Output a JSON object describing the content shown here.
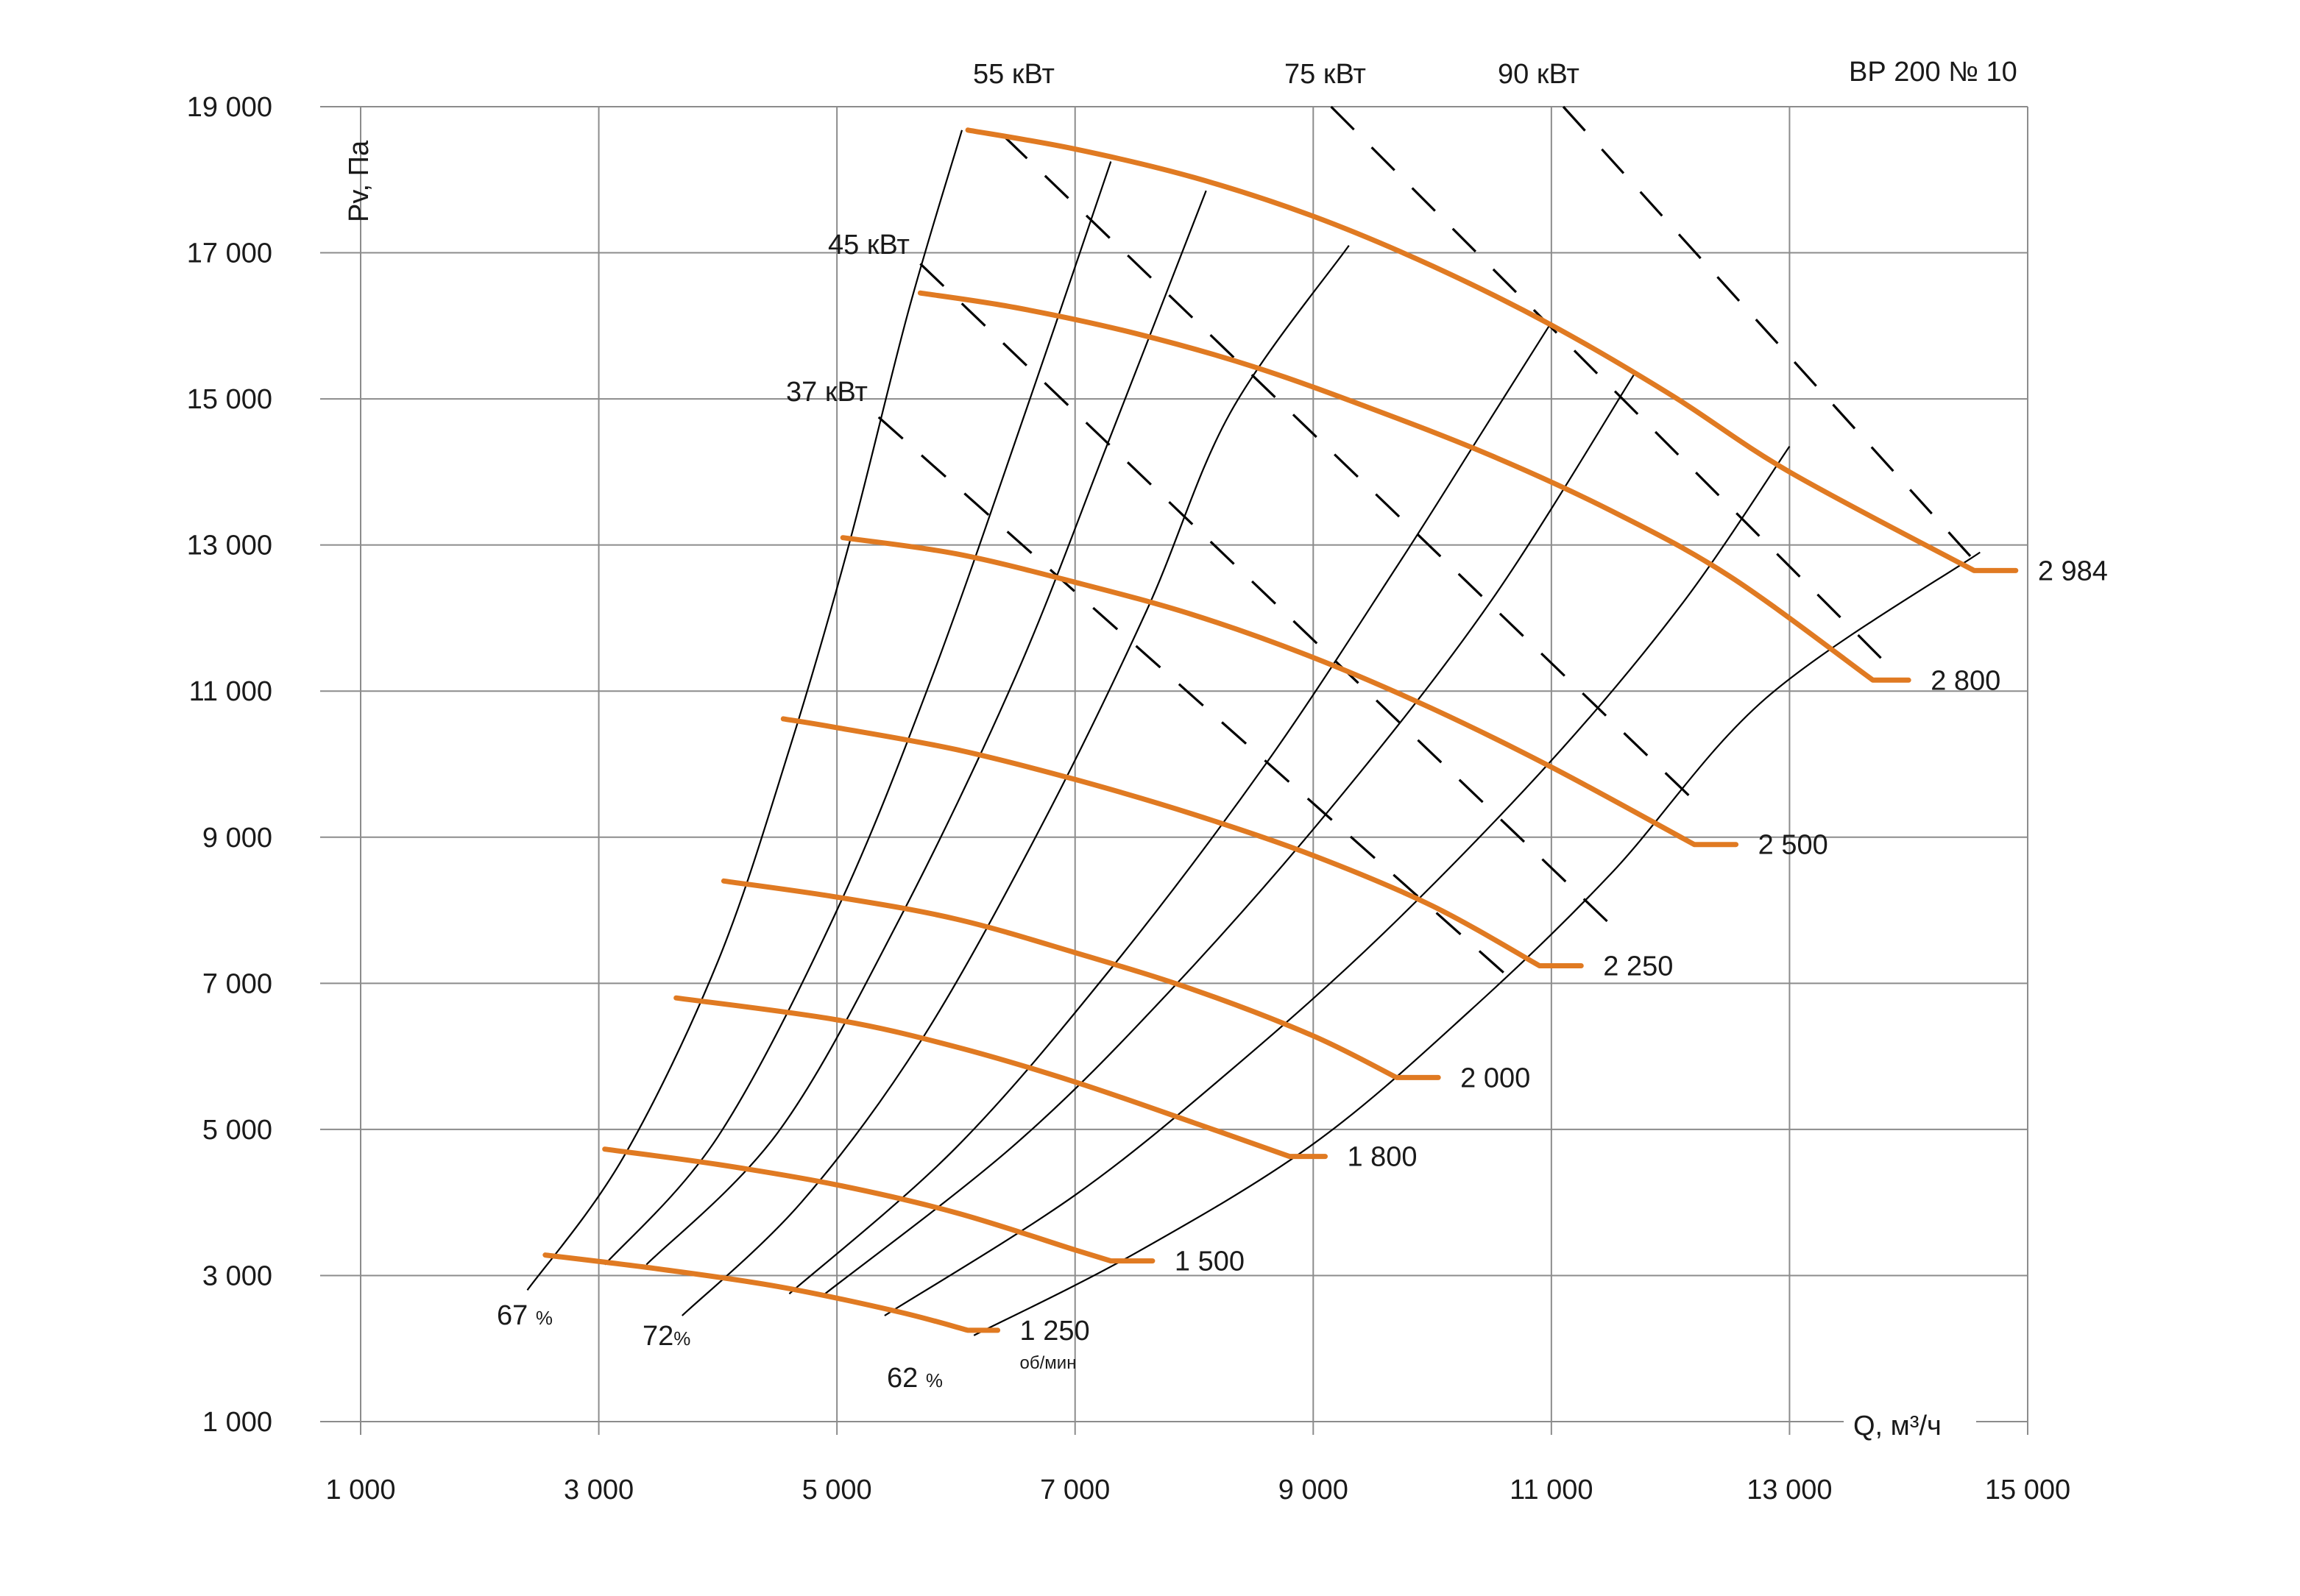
{
  "chart_data": {
    "type": "line",
    "title": "ВР  200 № 10",
    "xlabel": "Q, м³/ч",
    "ylabel": "Pv, Па",
    "xlim": [
      1000,
      15000
    ],
    "ylim": [
      1000,
      19000
    ],
    "x_ticks": [
      1000,
      3000,
      5000,
      7000,
      9000,
      11000,
      13000,
      15000
    ],
    "x_tick_labels": [
      "1 000",
      "3 000",
      "5 000",
      "7 000",
      "9 000",
      "11 000",
      "13 000",
      "15 000"
    ],
    "y_ticks": [
      1000,
      3000,
      5000,
      7000,
      9000,
      11000,
      13000,
      15000,
      17000,
      19000
    ],
    "y_tick_labels": [
      "1 000",
      "3 000",
      "5 000",
      "7 000",
      "9 000",
      "11 000",
      "13 000",
      "15 000",
      "17 000",
      "19 000"
    ],
    "grid": true,
    "line_color": "#E07A22",
    "series": [
      {
        "name": "1 250",
        "unit": "об/мин",
        "x": [
          2550,
          3500,
          4500,
          5500,
          6100
        ],
        "y": [
          3280,
          3090,
          2850,
          2510,
          2250
        ],
        "end": [
          6350,
          2250
        ]
      },
      {
        "name": "1 500",
        "x": [
          3050,
          4000,
          5000,
          6000,
          7000,
          7300
        ],
        "y": [
          4730,
          4520,
          4240,
          3860,
          3350,
          3200
        ],
        "end": [
          7650,
          3200
        ]
      },
      {
        "name": "1 800",
        "x": [
          3650,
          5000,
          6000,
          7000,
          8000,
          8800
        ],
        "y": [
          6800,
          6500,
          6130,
          5650,
          5090,
          4630
        ],
        "end": [
          9100,
          4630
        ]
      },
      {
        "name": "2 000",
        "x": [
          4050,
          5000,
          6000,
          7000,
          8000,
          9000,
          9700
        ],
        "y": [
          8400,
          8180,
          7880,
          7420,
          6910,
          6280,
          5710
        ],
        "end": [
          10050,
          5710
        ]
      },
      {
        "name": "2 250",
        "x": [
          4550,
          5000,
          6000,
          7000,
          8000,
          9000,
          10000,
          10900
        ],
        "y": [
          10620,
          10500,
          10200,
          9790,
          9310,
          8750,
          8060,
          7240
        ],
        "end": [
          11250,
          7240
        ]
      },
      {
        "name": "2 500",
        "x": [
          5050,
          6000,
          7000,
          8000,
          9000,
          10000,
          11000,
          12200
        ],
        "y": [
          13100,
          12880,
          12490,
          12040,
          11460,
          10760,
          9960,
          8900
        ],
        "end": [
          12550,
          8900
        ]
      },
      {
        "name": "2 800",
        "x": [
          5700,
          6500,
          7500,
          8500,
          9500,
          10500,
          11500,
          12500,
          13700
        ],
        "y": [
          16450,
          16250,
          15900,
          15440,
          14860,
          14220,
          13470,
          12570,
          11150
        ],
        "end": [
          14000,
          11150
        ]
      },
      {
        "name": "2 984",
        "x": [
          6100,
          7000,
          8000,
          9000,
          10000,
          11000,
          12000,
          13000,
          14550
        ],
        "y": [
          18680,
          18420,
          18030,
          17500,
          16820,
          16010,
          15060,
          14000,
          12650
        ],
        "end": [
          14900,
          12650
        ]
      }
    ],
    "efficiency_curves": [
      {
        "label": "67 %",
        "x": [
          2400,
          3200,
          4000,
          4600,
          5100,
          5600,
          6050
        ],
        "y": [
          2800,
          4600,
          7300,
          10200,
          13000,
          16200,
          18680
        ]
      },
      {
        "label": "",
        "x": [
          3050,
          4000,
          5000,
          5800,
          6600,
          7300
        ],
        "y": [
          3150,
          4900,
          8000,
          11200,
          14900,
          18250
        ]
      },
      {
        "label": "",
        "x": [
          3400,
          4500,
          5500,
          6500,
          7300,
          8100
        ],
        "y": [
          3150,
          4950,
          7800,
          11200,
          14500,
          17850
        ]
      },
      {
        "label": "72%",
        "x": [
          3700,
          4700,
          5700,
          6700,
          7600,
          8300,
          9300
        ],
        "y": [
          2450,
          4000,
          6200,
          9100,
          12100,
          14800,
          17100
        ]
      },
      {
        "label": "",
        "x": [
          4600,
          6000,
          7300,
          8600,
          9700,
          10400,
          11000
        ],
        "y": [
          2750,
          4750,
          7200,
          10000,
          12700,
          14500,
          16050
        ]
      },
      {
        "label": "",
        "x": [
          4900,
          6500,
          7800,
          9200,
          10500,
          11700
        ],
        "y": [
          2750,
          4800,
          6900,
          9500,
          12250,
          15350
        ]
      },
      {
        "label": "",
        "x": [
          5400,
          7000,
          8300,
          9600,
          11000,
          12100,
          13000
        ],
        "y": [
          2450,
          4100,
          5800,
          7700,
          10050,
          12200,
          14350
        ]
      },
      {
        "label": "62 %",
        "x": [
          6150,
          7500,
          9000,
          10300,
          11500,
          12800,
          14600
        ],
        "y": [
          2180,
          3300,
          4800,
          6600,
          8500,
          10900,
          12900
        ]
      }
    ],
    "power_lines": [
      {
        "label": "37 кВт",
        "x": [
          5350,
          10700
        ],
        "y": [
          14750,
          7000
        ]
      },
      {
        "label": "45 кВт",
        "x": [
          5700,
          11500
        ],
        "y": [
          16850,
          7800
        ]
      },
      {
        "label": "55 кВт",
        "x": [
          6400,
          12200
        ],
        "y": [
          18600,
          9500
        ]
      },
      {
        "label": "75 кВт",
        "x": [
          9150,
          13800
        ],
        "y": [
          19000,
          11400
        ]
      },
      {
        "label": "90 кВт",
        "x": [
          11100,
          14600
        ],
        "y": [
          19000,
          12700
        ]
      }
    ]
  }
}
